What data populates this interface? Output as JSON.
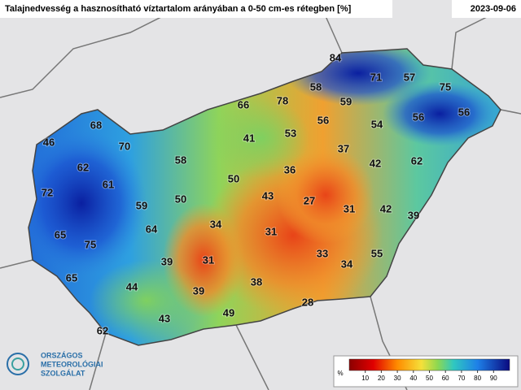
{
  "header": {
    "title": "Talajnedvesség a hasznosítható víztartalom arányában a 0-50 cm-es rétegben [%]",
    "date": "2023-09-06"
  },
  "stations": [
    46,
    68,
    70,
    62,
    61,
    58,
    72,
    59,
    50,
    64,
    65,
    75,
    34,
    39,
    31,
    65,
    44,
    39,
    43,
    49,
    62,
    66,
    78,
    58,
    84,
    71,
    57,
    75,
    59,
    56,
    54,
    56,
    56,
    53,
    41,
    37,
    42,
    62,
    36,
    50,
    43,
    27,
    31,
    42,
    39,
    31,
    33,
    34,
    55,
    38,
    28
  ],
  "colorbar": {
    "unit": "%",
    "ticks": [
      10,
      20,
      30,
      40,
      50,
      60,
      70,
      80,
      90
    ]
  },
  "logo": {
    "lines": [
      "ORSZÁGOS",
      "METEOROLÓGIAI",
      "SZOLGÁLAT"
    ]
  }
}
